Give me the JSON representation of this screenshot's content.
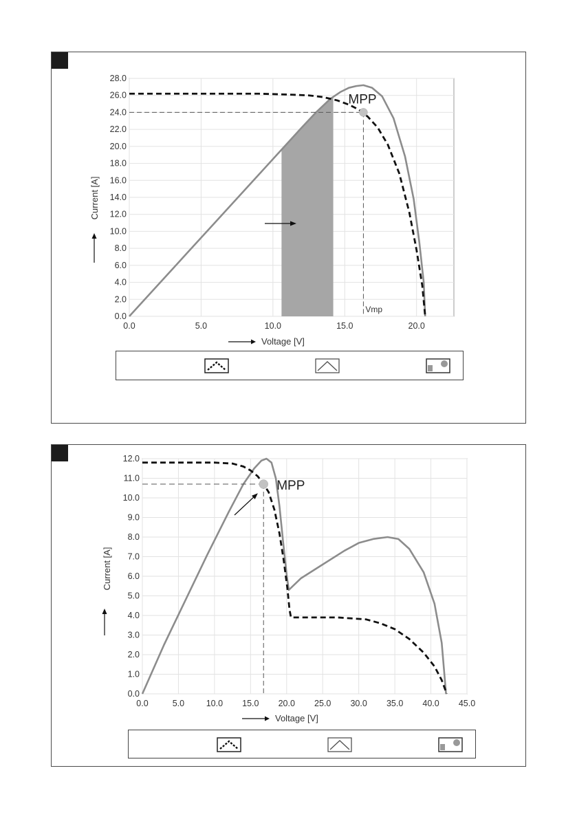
{
  "colors": {
    "frame": "#4a4a4a",
    "grid": "#e2e2e2",
    "axis": "#999999",
    "power_curve": "#8c8c8c",
    "iv_curve": "#111111",
    "shade": "#a6a6a6",
    "mpp_dot": "#c2c2c2",
    "tag": "#1c1c1c"
  },
  "legend_icons": [
    "dashed-curve-icon",
    "solid-curve-icon",
    "shade-mpp-icon"
  ],
  "chart_data": [
    {
      "type": "line",
      "xlabel": "Voltage [V]",
      "ylabel": "Current [A]",
      "xlim": [
        0,
        22.6
      ],
      "ylim": [
        0,
        28
      ],
      "x_ticks": [
        "0.0",
        "5.0",
        "10.0",
        "15.0",
        "20.0"
      ],
      "x_tick_values": [
        0,
        5,
        10,
        15,
        20
      ],
      "y_ticks": [
        "0.0",
        "2.0",
        "4.0",
        "6.0",
        "8.0",
        "10.0",
        "12.0",
        "14.0",
        "16.0",
        "18.0",
        "20.0",
        "22.0",
        "24.0",
        "26.0",
        "28.0"
      ],
      "y_tick_values": [
        0,
        2,
        4,
        6,
        8,
        10,
        12,
        14,
        16,
        18,
        20,
        22,
        24,
        26,
        28
      ],
      "grid": true,
      "series": [
        {
          "style": "solid",
          "x": [
            0,
            2,
            4,
            6,
            8,
            10,
            12,
            13,
            14,
            14.7,
            15.3,
            15.8,
            16.3,
            16.9,
            17.6,
            18.4,
            19.2,
            19.8,
            20.2,
            20.5,
            20.6
          ],
          "y": [
            0,
            3.7,
            7.4,
            11.1,
            14.8,
            18.5,
            22.2,
            24.0,
            25.6,
            26.4,
            26.9,
            27.1,
            27.2,
            26.9,
            25.9,
            23.3,
            18.8,
            13.8,
            8.6,
            4.0,
            0
          ]
        },
        {
          "style": "dashed",
          "x": [
            0,
            3,
            6,
            9,
            11,
            12.5,
            13.5,
            14.5,
            15.3,
            16.0,
            16.6,
            17.3,
            18.0,
            18.8,
            19.5,
            20.0,
            20.4,
            20.6
          ],
          "y": [
            26.2,
            26.2,
            26.2,
            26.2,
            26.1,
            26.0,
            25.8,
            25.4,
            24.9,
            24.3,
            23.5,
            22.2,
            20.2,
            16.8,
            12.2,
            7.8,
            3.6,
            0
          ]
        }
      ],
      "shaded_band": {
        "x": [
          10.6,
          14.2
        ]
      },
      "mpp": {
        "x": 16.3,
        "y": 24.0,
        "label": "MPP"
      },
      "vmp_label": "Vmp"
    },
    {
      "type": "line",
      "xlabel": "Voltage [V]",
      "ylabel": "Current [A]",
      "xlim": [
        0,
        45
      ],
      "ylim": [
        0,
        12
      ],
      "x_ticks": [
        "0.0",
        "5.0",
        "10.0",
        "15.0",
        "20.0",
        "25.0",
        "30.0",
        "35.0",
        "40.0",
        "45.0"
      ],
      "x_tick_values": [
        0,
        5,
        10,
        15,
        20,
        25,
        30,
        35,
        40,
        45
      ],
      "y_ticks": [
        "0.0",
        "1.0",
        "2.0",
        "3.0",
        "4.0",
        "5.0",
        "6.0",
        "7.0",
        "8.0",
        "9.0",
        "10.0",
        "11.0",
        "12.0"
      ],
      "y_tick_values": [
        0,
        1,
        2,
        3,
        4,
        5,
        6,
        7,
        8,
        9,
        10,
        11,
        12
      ],
      "grid": true,
      "series": [
        {
          "style": "solid",
          "x": [
            0,
            3,
            6,
            9,
            12,
            14,
            15.5,
            16.5,
            17.2,
            17.9,
            18.5,
            19.0,
            19.5,
            20.0,
            20.3,
            22,
            25,
            28,
            30,
            32,
            34,
            35.5,
            37,
            39,
            40.5,
            41.5,
            42.1
          ],
          "y": [
            0,
            2.5,
            4.8,
            7.1,
            9.3,
            10.7,
            11.5,
            11.9,
            12.0,
            11.8,
            11.0,
            9.6,
            7.8,
            6.1,
            5.3,
            5.9,
            6.6,
            7.3,
            7.7,
            7.9,
            8.0,
            7.9,
            7.4,
            6.2,
            4.6,
            2.6,
            0
          ]
        },
        {
          "style": "dashed",
          "x": [
            0,
            5,
            10,
            12.5,
            14,
            15,
            16,
            16.8,
            17.5,
            18.3,
            19.0,
            19.6,
            20.1,
            20.4,
            20.6,
            23,
            27,
            31,
            33,
            35,
            37,
            39,
            40.5,
            41.5,
            42.2
          ],
          "y": [
            11.8,
            11.8,
            11.8,
            11.75,
            11.6,
            11.4,
            11.1,
            10.7,
            10.3,
            9.4,
            8.2,
            6.8,
            5.4,
            4.3,
            3.9,
            3.9,
            3.9,
            3.8,
            3.6,
            3.3,
            2.8,
            2.1,
            1.4,
            0.7,
            0
          ]
        }
      ],
      "mpp": {
        "x": 16.8,
        "y": 10.7,
        "label": "MPP"
      }
    }
  ]
}
